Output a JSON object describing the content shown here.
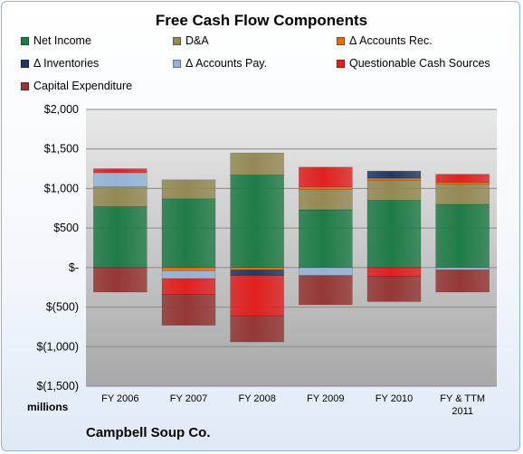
{
  "chart_data": {
    "type": "bar",
    "stacked": true,
    "title": "Free Cash Flow Components",
    "units_label": "millions",
    "footer": "Campbell Soup Co.",
    "categories": [
      "FY 2006",
      "FY 2007",
      "FY 2008",
      "FY 2009",
      "FY 2010",
      "FY & TTM 2011"
    ],
    "ylim": [
      -1500,
      2000
    ],
    "yticks": [
      2000,
      1500,
      1000,
      500,
      0,
      -500,
      -1000,
      -1500
    ],
    "ytick_labels": [
      "$2,000",
      "$1,500",
      "$1,000",
      "$500",
      "$-",
      "$(500)",
      "$(1,000)",
      "$(1,500)"
    ],
    "grid": true,
    "legend_position": "top",
    "series": [
      {
        "name": "Net Income",
        "color": "#1f7b46",
        "values": [
          770,
          870,
          1170,
          730,
          850,
          800
        ]
      },
      {
        "name": "D&A",
        "color": "#938953",
        "values": [
          250,
          240,
          280,
          260,
          250,
          260
        ]
      },
      {
        "name": "Δ Accounts Rec.",
        "color": "#e46c0a",
        "values": [
          0,
          -40,
          -30,
          30,
          30,
          20
        ]
      },
      {
        "name": "Δ Inventories",
        "color": "#1f3864",
        "values": [
          0,
          0,
          -70,
          0,
          90,
          0
        ]
      },
      {
        "name": "Δ Accounts Pay.",
        "color": "#95b3d7",
        "values": [
          180,
          -100,
          0,
          -100,
          0,
          -30
        ]
      },
      {
        "name": "Questionable Cash Sources",
        "color": "#e02020",
        "values": [
          50,
          -200,
          -510,
          250,
          -110,
          100
        ]
      },
      {
        "name": "Capital Expenditure",
        "color": "#953735",
        "values": [
          -310,
          -390,
          -330,
          -370,
          -320,
          -280
        ]
      }
    ]
  }
}
